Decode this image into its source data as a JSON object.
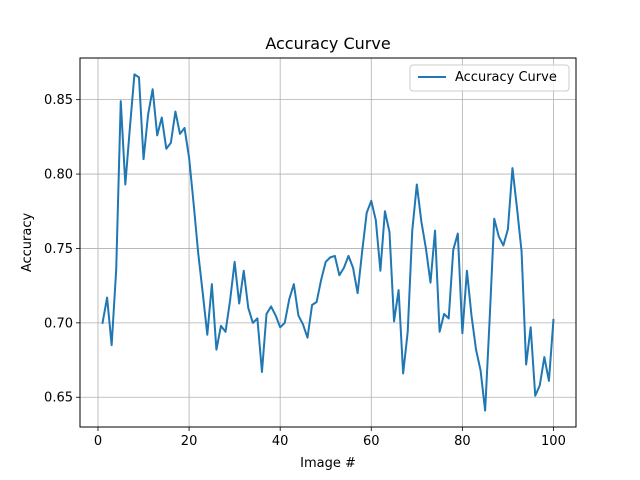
{
  "chart_data": {
    "type": "line",
    "title": "Accuracy Curve",
    "xlabel": "Image #",
    "ylabel": "Accuracy",
    "xlim": [
      -3.95,
      104.95
    ],
    "ylim": [
      0.63,
      0.878
    ],
    "xticks": [
      0,
      20,
      40,
      60,
      80,
      100
    ],
    "xtick_labels": [
      "0",
      "20",
      "40",
      "60",
      "80",
      "100"
    ],
    "yticks": [
      0.65,
      0.7,
      0.75,
      0.8,
      0.85
    ],
    "ytick_labels": [
      "0.65",
      "0.70",
      "0.75",
      "0.80",
      "0.85"
    ],
    "grid": true,
    "legend_position": "top-right",
    "series": [
      {
        "name": "Accuracy Curve",
        "color": "#1f77b4",
        "x": [
          1,
          2,
          3,
          4,
          5,
          6,
          7,
          8,
          9,
          10,
          11,
          12,
          13,
          14,
          15,
          16,
          17,
          18,
          19,
          20,
          21,
          22,
          23,
          24,
          25,
          26,
          27,
          28,
          29,
          30,
          31,
          32,
          33,
          34,
          35,
          36,
          37,
          38,
          39,
          40,
          41,
          42,
          43,
          44,
          45,
          46,
          47,
          48,
          49,
          50,
          51,
          52,
          53,
          54,
          55,
          56,
          57,
          58,
          59,
          60,
          61,
          62,
          63,
          64,
          65,
          66,
          67,
          68,
          69,
          70,
          71,
          72,
          73,
          74,
          75,
          76,
          77,
          78,
          79,
          80,
          81,
          82,
          83,
          84,
          85,
          86,
          87,
          88,
          89,
          90,
          91,
          92,
          93,
          94,
          95,
          96,
          97,
          98,
          99,
          100
        ],
        "values": [
          0.7,
          0.717,
          0.685,
          0.736,
          0.849,
          0.793,
          0.831,
          0.867,
          0.865,
          0.81,
          0.84,
          0.857,
          0.826,
          0.838,
          0.817,
          0.821,
          0.842,
          0.827,
          0.831,
          0.811,
          0.78,
          0.747,
          0.72,
          0.692,
          0.726,
          0.682,
          0.698,
          0.694,
          0.715,
          0.741,
          0.713,
          0.735,
          0.71,
          0.7,
          0.703,
          0.667,
          0.706,
          0.711,
          0.705,
          0.697,
          0.7,
          0.716,
          0.726,
          0.705,
          0.699,
          0.69,
          0.712,
          0.714,
          0.729,
          0.741,
          0.744,
          0.745,
          0.732,
          0.737,
          0.745,
          0.737,
          0.72,
          0.748,
          0.774,
          0.782,
          0.769,
          0.735,
          0.775,
          0.761,
          0.701,
          0.722,
          0.666,
          0.694,
          0.762,
          0.793,
          0.768,
          0.75,
          0.727,
          0.762,
          0.694,
          0.706,
          0.703,
          0.749,
          0.76,
          0.693,
          0.735,
          0.705,
          0.682,
          0.668,
          0.641,
          0.703,
          0.77,
          0.758,
          0.752,
          0.763,
          0.804,
          0.777,
          0.748,
          0.672,
          0.697,
          0.651,
          0.658,
          0.677,
          0.661,
          0.702
        ]
      }
    ]
  }
}
